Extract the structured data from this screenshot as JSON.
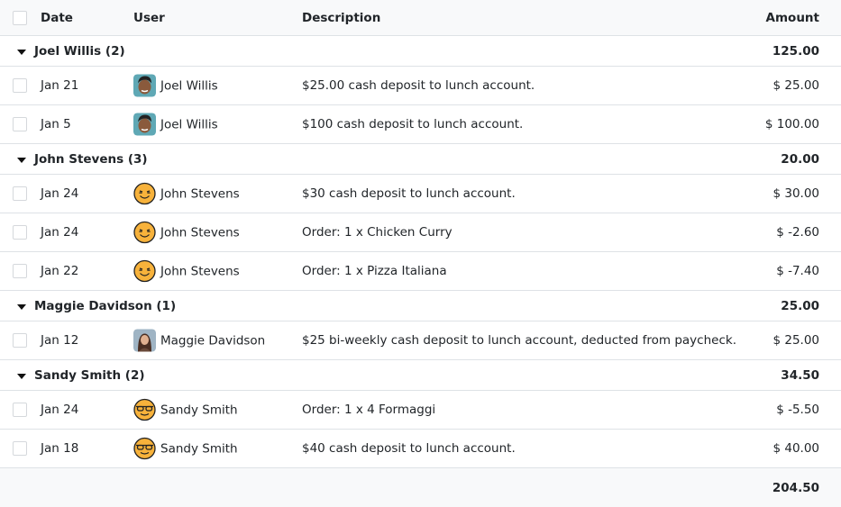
{
  "header": {
    "date": "Date",
    "user": "User",
    "description": "Description",
    "amount": "Amount"
  },
  "groups": [
    {
      "label": "Joel Willis (2)",
      "total": "125.00",
      "rows": [
        {
          "date": "Jan 21",
          "user": "Joel Willis",
          "avatar": "joel",
          "description": "$25.00 cash deposit to lunch account.",
          "amount": "$ 25.00"
        },
        {
          "date": "Jan 5",
          "user": "Joel Willis",
          "avatar": "joel",
          "description": "$100 cash deposit to lunch account.",
          "amount": "$ 100.00"
        }
      ]
    },
    {
      "label": "John Stevens (3)",
      "total": "20.00",
      "rows": [
        {
          "date": "Jan 24",
          "user": "John Stevens",
          "avatar": "smile",
          "description": "$30 cash deposit to lunch account.",
          "amount": "$ 30.00"
        },
        {
          "date": "Jan 24",
          "user": "John Stevens",
          "avatar": "smile",
          "description": "Order: 1 x Chicken Curry",
          "amount": "$ -2.60"
        },
        {
          "date": "Jan 22",
          "user": "John Stevens",
          "avatar": "smile",
          "description": "Order: 1 x Pizza Italiana",
          "amount": "$ -7.40"
        }
      ]
    },
    {
      "label": "Maggie Davidson (1)",
      "total": "25.00",
      "rows": [
        {
          "date": "Jan 12",
          "user": "Maggie Davidson",
          "avatar": "maggie",
          "description": "$25 bi-weekly cash deposit to lunch account, deducted from paycheck.",
          "amount": "$ 25.00"
        }
      ]
    },
    {
      "label": "Sandy Smith (2)",
      "total": "34.50",
      "rows": [
        {
          "date": "Jan 24",
          "user": "Sandy Smith",
          "avatar": "sunglasses",
          "description": "Order: 1 x 4 Formaggi",
          "amount": "$ -5.50"
        },
        {
          "date": "Jan 18",
          "user": "Sandy Smith",
          "avatar": "sunglasses",
          "description": "$40 cash deposit to lunch account.",
          "amount": "$ 40.00"
        }
      ]
    }
  ],
  "footer": {
    "total": "204.50"
  }
}
